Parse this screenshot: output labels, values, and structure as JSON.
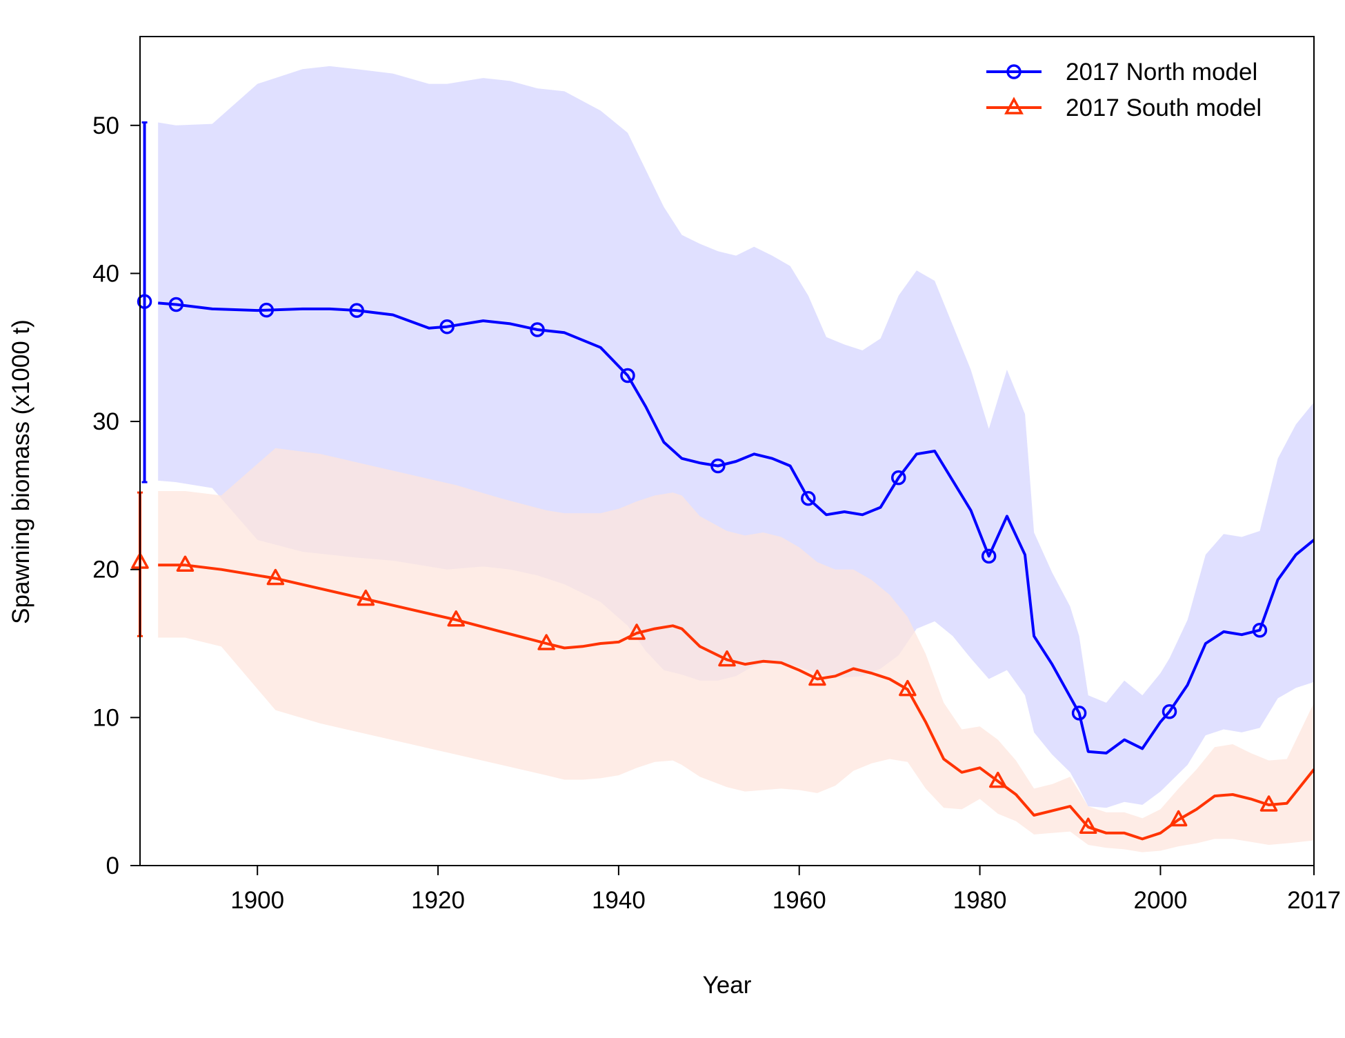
{
  "chart_data": {
    "type": "line",
    "title": "",
    "xlabel": "Year",
    "ylabel": "Spawning biomass (x1000 t)",
    "xlim": [
      1887,
      2017
    ],
    "ylim": [
      0,
      56
    ],
    "x_ticks": [
      1900,
      1920,
      1940,
      1960,
      1980,
      2000,
      2017
    ],
    "y_ticks": [
      0,
      10,
      20,
      30,
      40,
      50
    ],
    "grid": false,
    "legend": "top-right",
    "series": [
      {
        "name": "2017 North model",
        "color": "#0000ff",
        "band_color": "#e0e0ff",
        "marker": "circle",
        "virgin": {
          "x": 1887.5,
          "value": 38.1,
          "lower": 25.9,
          "upper": 50.2
        },
        "x": [
          1889,
          1891,
          1895,
          1900,
          1905,
          1908,
          1911,
          1915,
          1919,
          1921,
          1925,
          1928,
          1931,
          1934,
          1938,
          1941,
          1943,
          1945,
          1947,
          1949,
          1951,
          1953,
          1955,
          1957,
          1959,
          1961,
          1963,
          1965,
          1967,
          1969,
          1971,
          1973,
          1975,
          1977,
          1979,
          1981,
          1983,
          1985,
          1986,
          1988,
          1990,
          1991,
          1992,
          1994,
          1996,
          1998,
          2000,
          2001,
          2003,
          2005,
          2007,
          2009,
          2011,
          2013,
          2015,
          2017
        ],
        "values": [
          38.0,
          37.9,
          37.6,
          37.5,
          37.6,
          37.6,
          37.5,
          37.2,
          36.3,
          36.4,
          36.8,
          36.6,
          36.2,
          36.0,
          35.0,
          33.1,
          31.0,
          28.6,
          27.5,
          27.2,
          27.0,
          27.3,
          27.8,
          27.5,
          27.0,
          24.8,
          23.7,
          23.9,
          23.7,
          24.2,
          26.2,
          27.8,
          28.0,
          26.0,
          24.0,
          20.9,
          23.6,
          21.0,
          15.5,
          13.6,
          11.4,
          10.3,
          7.7,
          7.6,
          8.5,
          7.9,
          9.7,
          10.4,
          12.2,
          15.0,
          15.8,
          15.6,
          15.9,
          19.3,
          21.0,
          22.0
        ],
        "lower": [
          26.0,
          25.9,
          25.5,
          22.0,
          21.2,
          21.0,
          20.8,
          20.6,
          20.2,
          20.0,
          20.2,
          20.0,
          19.6,
          19.0,
          17.8,
          16.2,
          14.5,
          13.2,
          12.9,
          12.5,
          12.5,
          12.8,
          13.5,
          13.8,
          13.6,
          13.2,
          12.8,
          12.7,
          12.8,
          13.3,
          14.2,
          16.0,
          16.5,
          15.5,
          14.0,
          12.6,
          13.2,
          11.5,
          9.0,
          7.5,
          6.3,
          5.2,
          4.0,
          3.9,
          4.3,
          4.1,
          5.0,
          5.6,
          6.8,
          8.8,
          9.2,
          9.0,
          9.3,
          11.3,
          12.0,
          12.4
        ],
        "upper": [
          50.2,
          50.0,
          50.1,
          52.8,
          53.8,
          54.0,
          53.8,
          53.5,
          52.8,
          52.8,
          53.2,
          53.0,
          52.5,
          52.3,
          51.0,
          49.5,
          47.0,
          44.5,
          42.6,
          42.0,
          41.5,
          41.2,
          41.8,
          41.2,
          40.5,
          38.5,
          35.7,
          35.2,
          34.8,
          35.6,
          38.5,
          40.2,
          39.5,
          36.5,
          33.5,
          29.5,
          33.5,
          30.5,
          22.5,
          19.8,
          17.5,
          15.5,
          11.5,
          11.0,
          12.5,
          11.5,
          13.0,
          14.0,
          16.6,
          21.0,
          22.4,
          22.2,
          22.6,
          27.5,
          29.8,
          31.3
        ]
      },
      {
        "name": "2017 South model",
        "color": "#ff3300",
        "band_color": "#fde4dc",
        "marker": "triangle",
        "virgin": {
          "x": 1887,
          "value": 20.5,
          "lower": 15.5,
          "upper": 25.2
        },
        "x": [
          1889,
          1892,
          1896,
          1902,
          1907,
          1912,
          1917,
          1922,
          1927,
          1932,
          1934,
          1936,
          1938,
          1940,
          1942,
          1944,
          1946,
          1947,
          1949,
          1952,
          1954,
          1956,
          1958,
          1960,
          1962,
          1964,
          1966,
          1968,
          1970,
          1972,
          1974,
          1976,
          1978,
          1980,
          1982,
          1984,
          1986,
          1988,
          1990,
          1992,
          1994,
          1996,
          1998,
          2000,
          2002,
          2004,
          2006,
          2008,
          2010,
          2012,
          2014,
          2017
        ],
        "values": [
          20.3,
          20.3,
          20.0,
          19.4,
          18.7,
          18.0,
          17.3,
          16.6,
          15.8,
          15.0,
          14.7,
          14.8,
          15.0,
          15.1,
          15.7,
          16.0,
          16.2,
          16.0,
          14.8,
          13.9,
          13.6,
          13.8,
          13.7,
          13.2,
          12.6,
          12.8,
          13.3,
          13.0,
          12.6,
          11.9,
          9.7,
          7.2,
          6.3,
          6.6,
          5.7,
          4.8,
          3.4,
          3.7,
          4.0,
          2.6,
          2.2,
          2.2,
          1.8,
          2.2,
          3.1,
          3.8,
          4.7,
          4.8,
          4.5,
          4.1,
          4.2,
          6.5
        ],
        "lower": [
          15.4,
          15.4,
          14.8,
          10.5,
          9.6,
          8.9,
          8.2,
          7.5,
          6.8,
          6.1,
          5.8,
          5.8,
          5.9,
          6.1,
          6.6,
          7.0,
          7.1,
          6.8,
          6.0,
          5.3,
          5.0,
          5.1,
          5.2,
          5.1,
          4.9,
          5.4,
          6.4,
          6.9,
          7.2,
          7.0,
          5.2,
          3.9,
          3.8,
          4.5,
          3.5,
          3.0,
          2.1,
          2.2,
          2.3,
          1.4,
          1.2,
          1.1,
          0.9,
          1.0,
          1.3,
          1.5,
          1.8,
          1.8,
          1.6,
          1.4,
          1.5,
          1.7
        ],
        "upper": [
          25.3,
          25.3,
          25.0,
          28.2,
          27.8,
          27.1,
          26.4,
          25.7,
          24.8,
          24.0,
          23.8,
          23.8,
          23.8,
          24.1,
          24.6,
          25.0,
          25.2,
          25.0,
          23.6,
          22.6,
          22.3,
          22.5,
          22.2,
          21.5,
          20.5,
          20.0,
          20.0,
          19.3,
          18.3,
          16.8,
          14.3,
          11.0,
          9.2,
          9.4,
          8.5,
          7.1,
          5.2,
          5.5,
          6.0,
          4.0,
          3.6,
          3.6,
          3.2,
          3.8,
          5.2,
          6.5,
          8.0,
          8.2,
          7.6,
          7.1,
          7.2,
          11.0
        ]
      }
    ]
  }
}
